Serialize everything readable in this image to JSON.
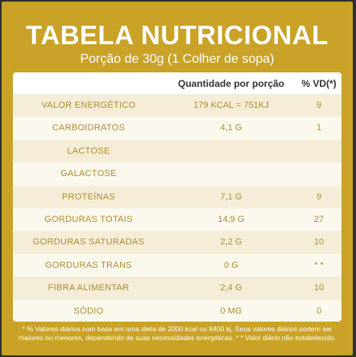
{
  "header": {
    "title": "TABELA NUTRICIONAL",
    "subtitle": "Porção de 30g (1 Colher de sopa)"
  },
  "table": {
    "col_qty": "Quantidade por porção",
    "col_vd": "% VD(*)",
    "rows": [
      {
        "name": "VALOR ENERGÉTICO",
        "qty": "179 KCAL = 751KJ",
        "vd": "9"
      },
      {
        "name": "CARBOIDRATOS",
        "qty": "4,1 G",
        "vd": "1"
      },
      {
        "name": "LACTOSE",
        "qty": "",
        "vd": ""
      },
      {
        "name": "GALACTOSE",
        "qty": "",
        "vd": ""
      },
      {
        "name": "PROTEÍNAS",
        "qty": "7,1 G",
        "vd": "9"
      },
      {
        "name": "GORDURAS TOTAIS",
        "qty": "14,9 G",
        "vd": "27"
      },
      {
        "name": "GORDURAS SATURADAS",
        "qty": "2,2 G",
        "vd": "10"
      },
      {
        "name": "GORDURAS TRANS",
        "qty": "0 G",
        "vd": "* *"
      },
      {
        "name": "FIBRA ALIMENTAR",
        "qty": "2,4 G",
        "vd": "10"
      },
      {
        "name": "SÓDIO",
        "qty": "0 MG",
        "vd": "0"
      }
    ]
  },
  "footnote": "* % Valores diários com base em uma dieta de 2000 kcal ou 8400 kj. Seus valores diários podem ser maiores ou menores, dependendo de suas necessidades energéticas. * * Valor diário não estabelecido.",
  "colors": {
    "gold": "#c9a227",
    "cream": "#fbf8ee",
    "stripe": "#f5edd7",
    "text_gold": "#b08d2e"
  }
}
